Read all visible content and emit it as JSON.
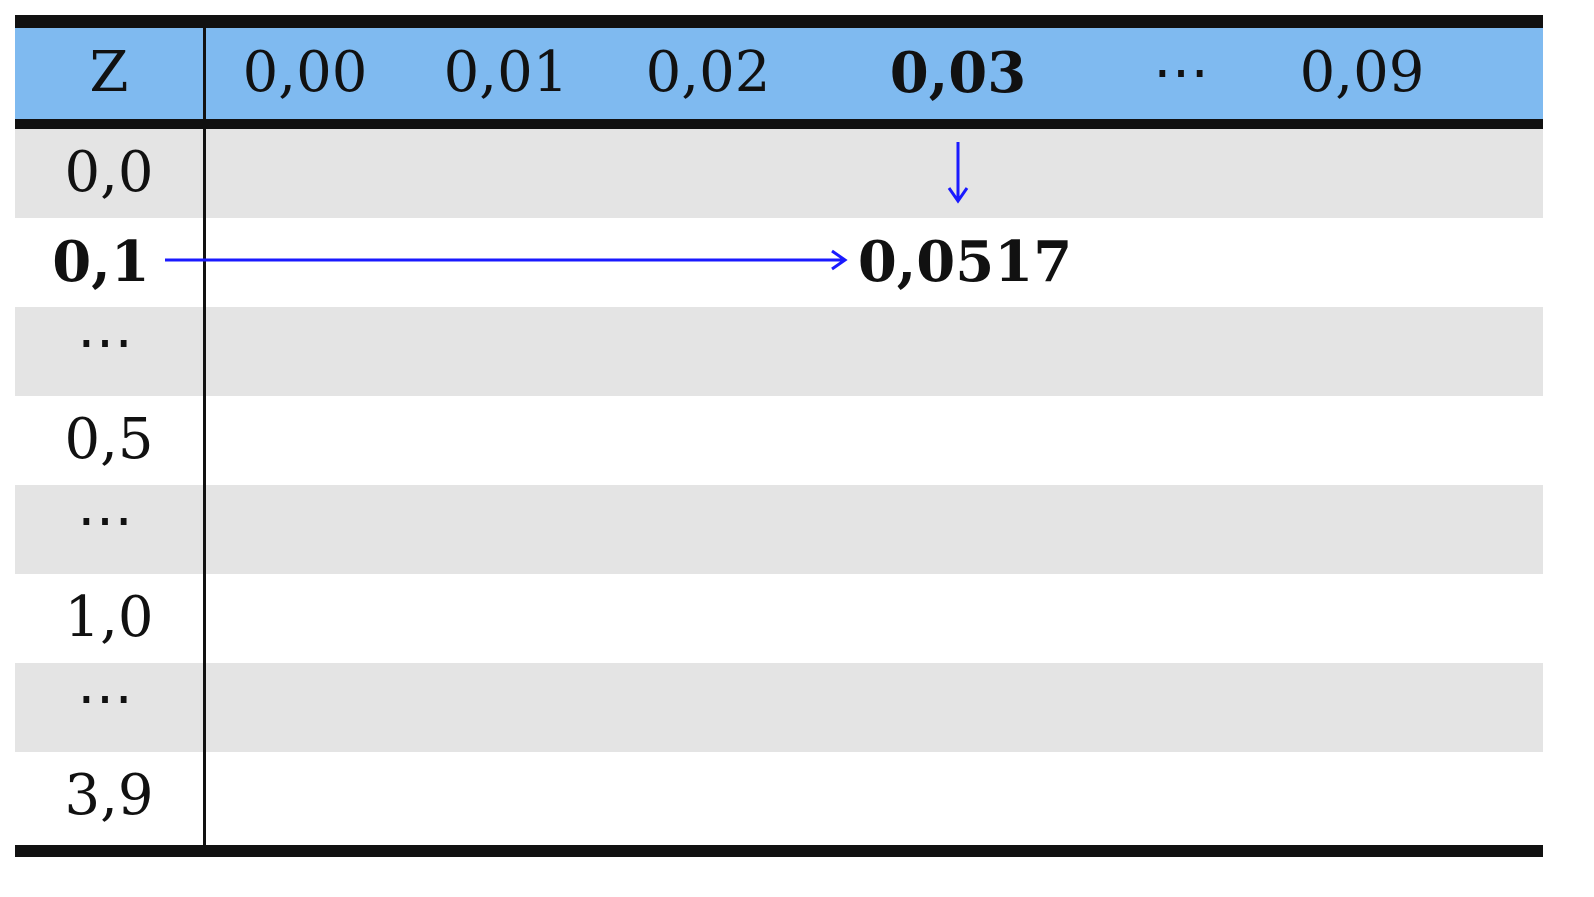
{
  "table": {
    "corner_label": "Z",
    "column_headers": [
      {
        "label": "0,00",
        "bold": false
      },
      {
        "label": "0,01",
        "bold": false
      },
      {
        "label": "0,02",
        "bold": false
      },
      {
        "label": "0,03",
        "bold": true
      },
      {
        "label": "⋯",
        "bold": false
      },
      {
        "label": "0,09",
        "bold": false
      }
    ],
    "row_headers": [
      {
        "label": "0,0",
        "bold": false
      },
      {
        "label": "0,1",
        "bold": true
      },
      {
        "label": "⋯",
        "bold": false
      },
      {
        "label": "0,5",
        "bold": false
      },
      {
        "label": "⋯",
        "bold": false
      },
      {
        "label": "1,0",
        "bold": false
      },
      {
        "label": "⋯",
        "bold": false
      },
      {
        "label": "3,9",
        "bold": false
      }
    ],
    "highlighted_value": "0,0517"
  },
  "colors": {
    "header_background": "#7fbaf0",
    "stripe_background": "#e4e4e4",
    "arrow": "#1a1aff",
    "rule": "#111111"
  }
}
